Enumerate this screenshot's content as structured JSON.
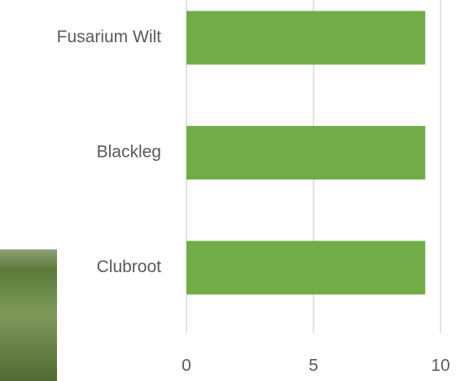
{
  "chart_data": {
    "type": "bar",
    "orientation": "horizontal",
    "categories": [
      "Fusarium Wilt",
      "Blackleg",
      "Clubroot"
    ],
    "values": [
      9.4,
      9.4,
      9.4
    ],
    "color": "#70ad47",
    "xlim": [
      0,
      10
    ],
    "xticks": [
      0,
      5,
      10
    ],
    "grid": true
  }
}
